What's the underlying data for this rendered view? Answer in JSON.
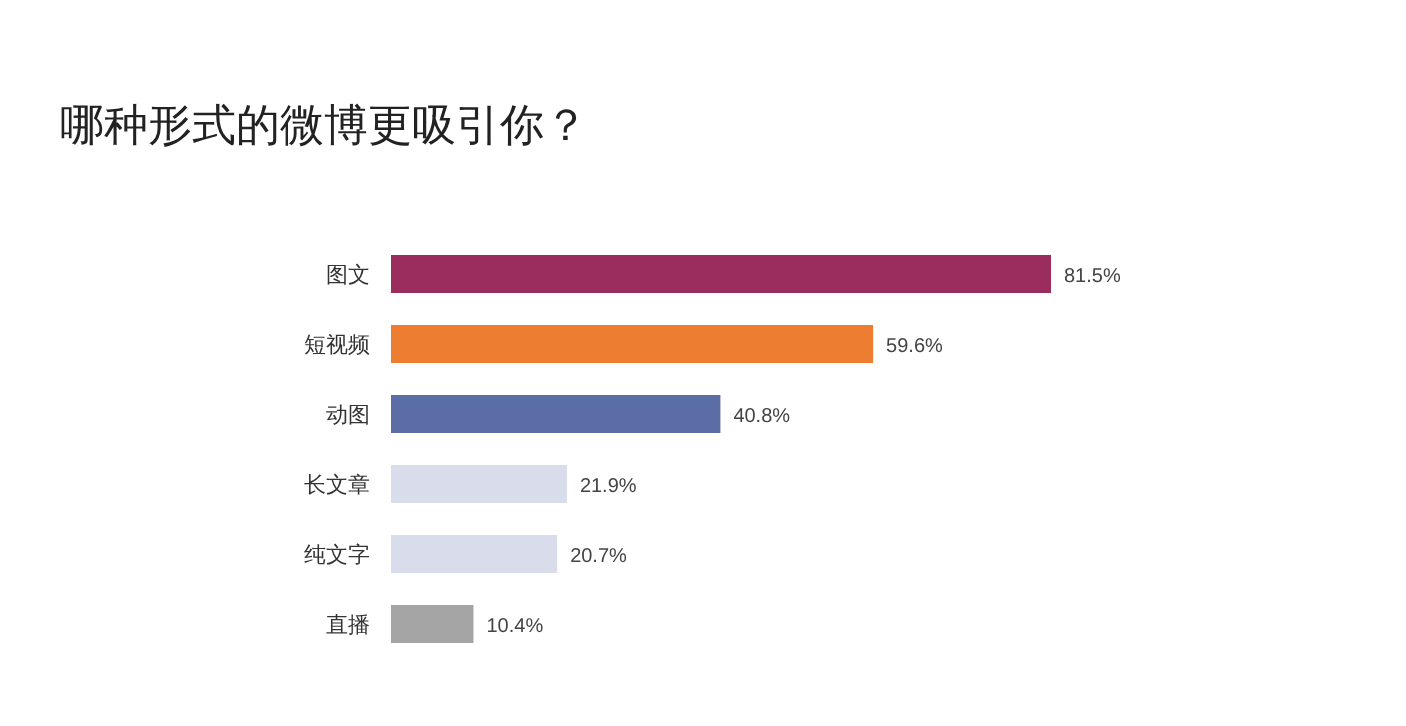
{
  "chart_data": {
    "type": "bar",
    "orientation": "horizontal",
    "title": "哪种形式的微博更吸引你？",
    "categories": [
      "图文",
      "短视频",
      "动图",
      "长文章",
      "纯文字",
      "直播"
    ],
    "values": [
      81.5,
      59.6,
      40.8,
      21.9,
      20.7,
      10.4
    ],
    "colors": [
      "#9b2d5e",
      "#ed7d31",
      "#5a6ea5",
      "#d9dcea",
      "#d9dcea",
      "#a5a5a5"
    ],
    "value_labels": [
      "81.5%",
      "59.6%",
      "40.8%",
      "21.9%",
      "20.7%",
      "10.4%"
    ]
  }
}
